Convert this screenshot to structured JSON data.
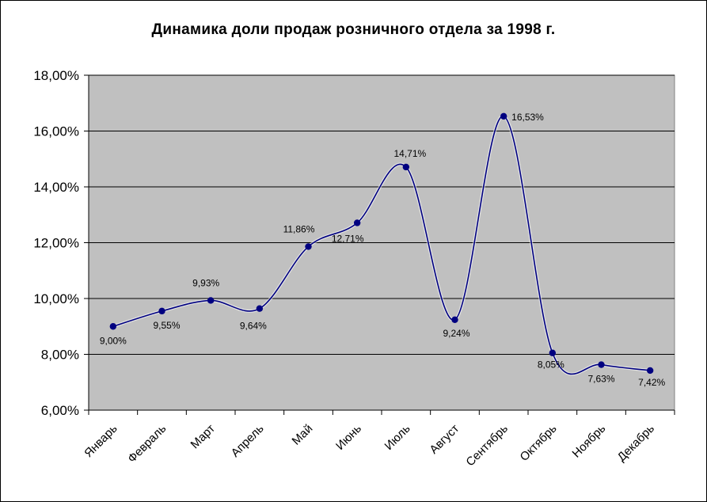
{
  "chart_data": {
    "type": "line",
    "title": "Динамика доли продаж розничного отдела за 1998 г.",
    "xlabel": "",
    "ylabel": "",
    "categories": [
      "Январь",
      "Февраль",
      "Март",
      "Апрель",
      "Май",
      "Июнь",
      "Июль",
      "Август",
      "Сентябрь",
      "Октябрь",
      "Ноябрь",
      "Декабрь"
    ],
    "series": [
      {
        "values": [
          9.0,
          9.55,
          9.93,
          9.64,
          11.86,
          12.71,
          14.71,
          9.24,
          16.53,
          8.05,
          7.63,
          7.42
        ],
        "data_labels": [
          "9,00%",
          "9,55%",
          "9,93%",
          "9,64%",
          "11,86%",
          "12,71%",
          "14,71%",
          "9,24%",
          "16,53%",
          "8,05%",
          "7,63%",
          "7,42%"
        ]
      }
    ],
    "ylim": [
      6,
      18
    ],
    "yticks": [
      6,
      8,
      10,
      12,
      14,
      16,
      18
    ],
    "ytick_labels": [
      "6,00%",
      "8,00%",
      "10,00%",
      "12,00%",
      "14,00%",
      "16,00%",
      "18,00%"
    ],
    "smoothed": true,
    "grid": true,
    "legend": "none",
    "colors": {
      "plot_background": "#c0c0c0",
      "line": "#000080",
      "marker": "#000080",
      "gridline": "#000000"
    }
  }
}
